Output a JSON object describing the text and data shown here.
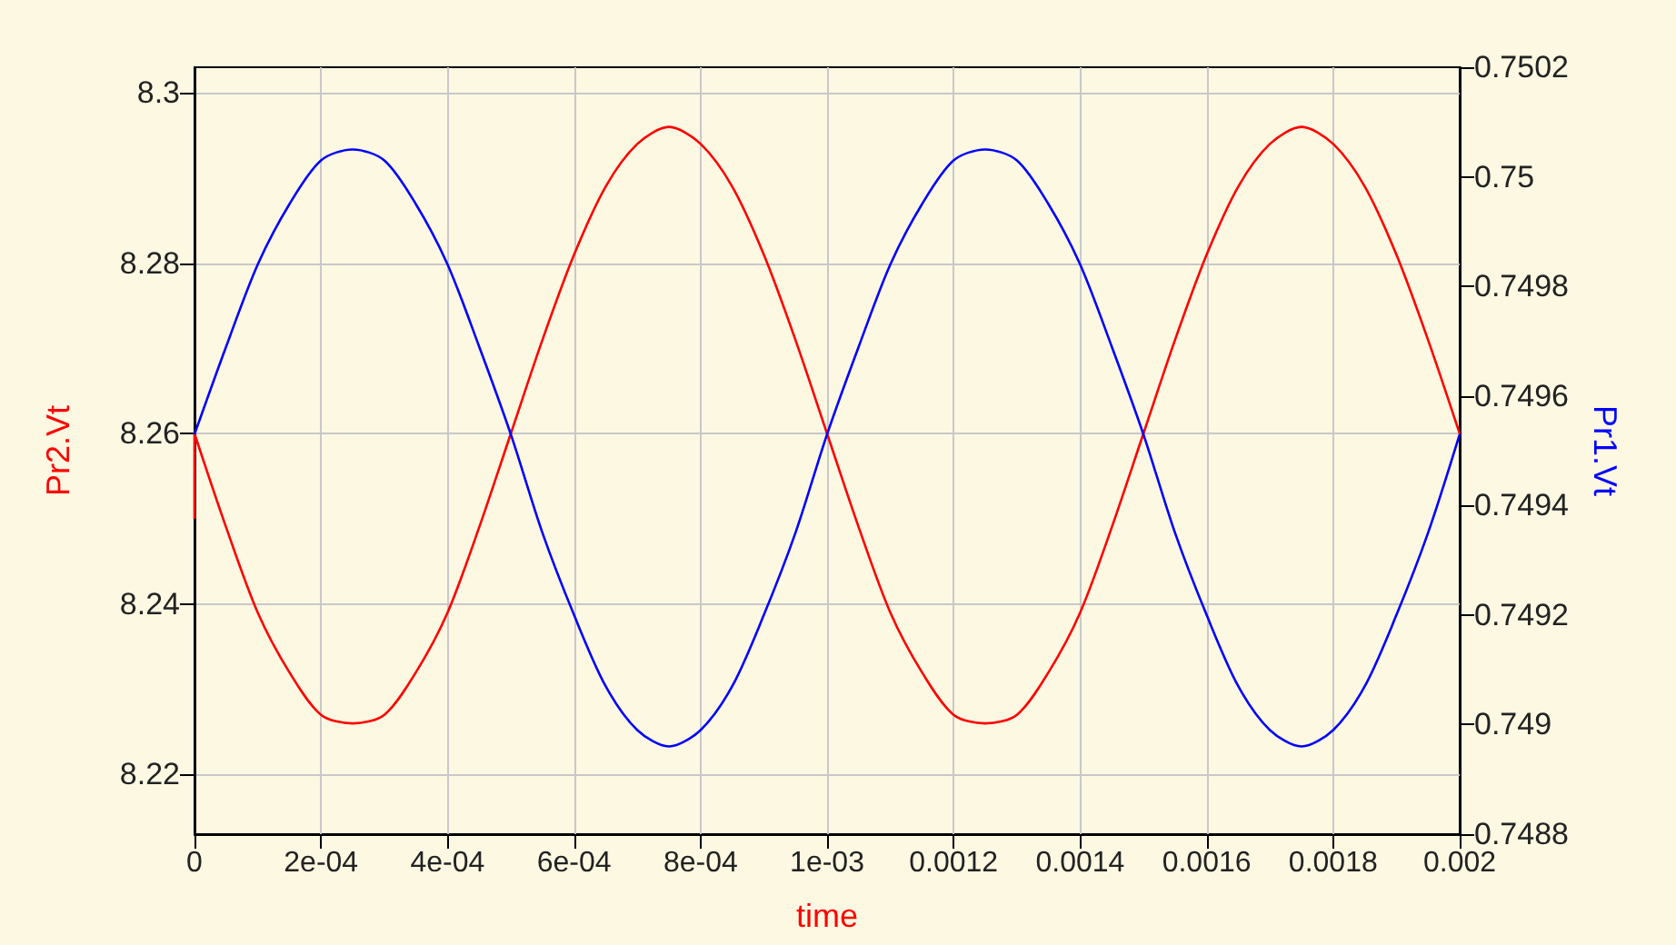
{
  "chart_data": {
    "type": "line",
    "xlabel": "time",
    "ylabel": "Pr2.Vt",
    "y2label": "Pr1.Vt",
    "x": [
      0,
      5e-05,
      0.0001,
      0.00015,
      0.0002,
      0.00025,
      0.0003,
      0.00035,
      0.0004,
      0.00045,
      0.0005,
      0.00055,
      0.0006,
      0.00065,
      0.0007,
      0.00075,
      0.0008,
      0.00085,
      0.0009,
      0.00095,
      0.001,
      0.00105,
      0.0011,
      0.00115,
      0.0012,
      0.00125,
      0.0013,
      0.00135,
      0.0014,
      0.00145,
      0.0015,
      0.00155,
      0.0016,
      0.00165,
      0.0017,
      0.00175,
      0.0018,
      0.00185,
      0.0019,
      0.00195,
      0.002
    ],
    "series": [
      {
        "color": "#ff0000",
        "x": [
          0,
          0,
          5e-05,
          0.0001,
          0.00015,
          0.0002,
          0.00025,
          0.0003,
          0.00035,
          0.0004,
          0.00045,
          0.0005,
          0.00055,
          0.0006,
          0.00065,
          0.0007,
          0.00075,
          0.0008,
          0.00085,
          0.0009,
          0.00095,
          0.001,
          0.00105,
          0.0011,
          0.00115,
          0.0012,
          0.00125,
          0.0013,
          0.00135,
          0.0014,
          0.00145,
          0.0015,
          0.00155,
          0.0016,
          0.00165,
          0.0017,
          0.00175,
          0.0018,
          0.00185,
          0.0019,
          0.00195,
          0.002
        ],
        "values": [
          8.25,
          8.26,
          8.249,
          8.239,
          8.232,
          8.227,
          8.226,
          8.227,
          8.232,
          8.239,
          8.249,
          8.26,
          8.271,
          8.281,
          8.289,
          8.294,
          8.296,
          8.294,
          8.289,
          8.281,
          8.271,
          8.26,
          8.249,
          8.239,
          8.232,
          8.227,
          8.226,
          8.227,
          8.232,
          8.239,
          8.249,
          8.26,
          8.271,
          8.281,
          8.289,
          8.294,
          8.296,
          8.294,
          8.289,
          8.281,
          8.271,
          8.26
        ]
      },
      {
        "color": "#0000ff",
        "axis": "y2",
        "values": [
          0.74953,
          0.74969,
          0.74984,
          0.74995,
          0.75003,
          0.75005,
          0.75003,
          0.74995,
          0.74984,
          0.74969,
          0.74953,
          0.74935,
          0.7492,
          0.74907,
          0.74899,
          0.74896,
          0.74899,
          0.74907,
          0.7492,
          0.74935,
          0.74953,
          0.74969,
          0.74984,
          0.74995,
          0.75003,
          0.75005,
          0.75003,
          0.74995,
          0.74984,
          0.74969,
          0.74953,
          0.74935,
          0.7492,
          0.74907,
          0.74899,
          0.74896,
          0.74899,
          0.74907,
          0.7492,
          0.74935,
          0.74953
        ]
      }
    ],
    "xlim": [
      0,
      0.002
    ],
    "xticks": [
      0,
      {
        "value": 0.0002,
        "label": "2e-04"
      },
      {
        "value": 0.0004,
        "label": "4e-04"
      },
      {
        "value": 0.0006,
        "label": "6e-04"
      },
      {
        "value": 0.0008,
        "label": "8e-04"
      },
      {
        "value": 0.001,
        "label": "1e-03"
      },
      0.0012,
      0.0014,
      0.0016,
      0.0018,
      0.002
    ],
    "ylim": [
      8.213,
      8.303
    ],
    "yticks": [
      8.22,
      8.24,
      8.26,
      8.28,
      8.3
    ],
    "y2lim": [
      0.7488,
      0.7502
    ],
    "y2ticks": [
      0.7488,
      0.749,
      0.7492,
      0.7494,
      0.7496,
      0.7498,
      0.75,
      0.7502
    ],
    "grid": true
  }
}
